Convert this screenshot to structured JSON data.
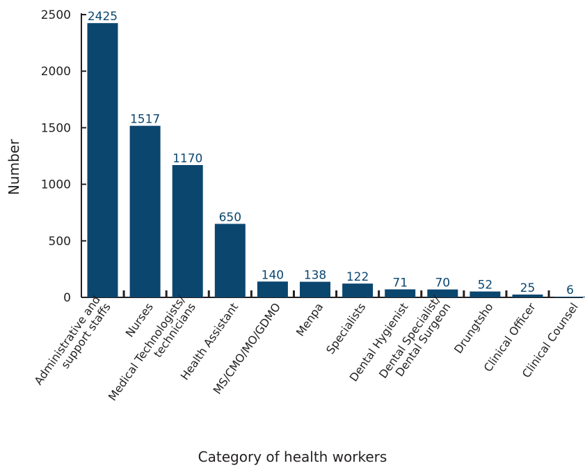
{
  "chart_data": {
    "type": "bar",
    "categories": [
      [
        "Administrative and",
        "support staffs"
      ],
      [
        "Nurses"
      ],
      [
        "Medical Technologists/",
        "technicians"
      ],
      [
        "Health Assistant"
      ],
      [
        "MS/CMO/MO/GDMO"
      ],
      [
        "Menpa"
      ],
      [
        "Specialists"
      ],
      [
        "Dental Hygienist"
      ],
      [
        "Dental Specialist/",
        "Dental Surgeon"
      ],
      [
        "Drungtsho"
      ],
      [
        "Clinical Officer"
      ],
      [
        "Clinical Counsel"
      ]
    ],
    "values": [
      2425,
      1517,
      1170,
      650,
      140,
      138,
      122,
      71,
      70,
      52,
      25,
      6
    ],
    "data_labels": [
      "2425",
      "1517",
      "1170",
      "650",
      "140",
      "138",
      "122",
      "71",
      "70",
      "52",
      "25",
      "6"
    ],
    "yticks": [
      "0",
      "500",
      "1000",
      "1500",
      "2000",
      "2500"
    ],
    "ylim": [
      0,
      2500
    ],
    "xlabel": "Category of health workers",
    "ylabel": "Number",
    "bar_color": "#0b466f",
    "label_color": "#0b466f",
    "axis_color": "#231f20",
    "grid": false
  }
}
